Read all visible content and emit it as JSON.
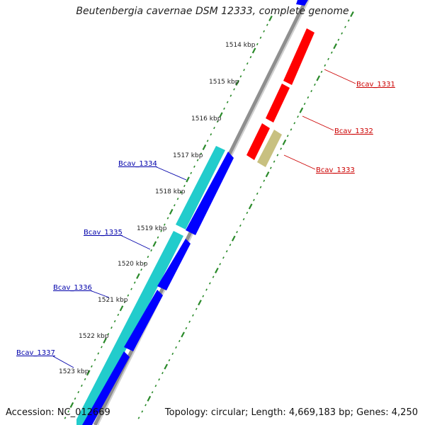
{
  "title": "Beutenbergia cavernae DSM 12333, complete genome",
  "accession": "Accession: NC_012669",
  "topology": "Topology: circular; Length: 4,669,183 bp; Genes: 4,250",
  "colors": {
    "backbone": "#8f8f8f",
    "tick": "#2a8a2a",
    "forward_gene": "#ff0000",
    "forward_other": "#c8c080",
    "reverse_gene": "#0000ff",
    "reverse_cds": "#22cccc",
    "forward_label": "#cc0000",
    "reverse_label": "#0000aa"
  },
  "kbp_labels": [
    "1514 kbp",
    "1515 kbp",
    "1516 kbp",
    "1517 kbp",
    "1518 kbp",
    "1519 kbp",
    "1520 kbp",
    "1521 kbp",
    "1522 kbp",
    "1523 kbp"
  ],
  "genes": [
    {
      "name": "Bcav_1331",
      "strand": "forward"
    },
    {
      "name": "Bcav_1332",
      "strand": "forward"
    },
    {
      "name": "Bcav_1333",
      "strand": "forward"
    },
    {
      "name": "Bcav_1334",
      "strand": "reverse"
    },
    {
      "name": "Bcav_1335",
      "strand": "reverse"
    },
    {
      "name": "Bcav_1336",
      "strand": "reverse"
    },
    {
      "name": "Bcav_1337",
      "strand": "reverse"
    }
  ]
}
